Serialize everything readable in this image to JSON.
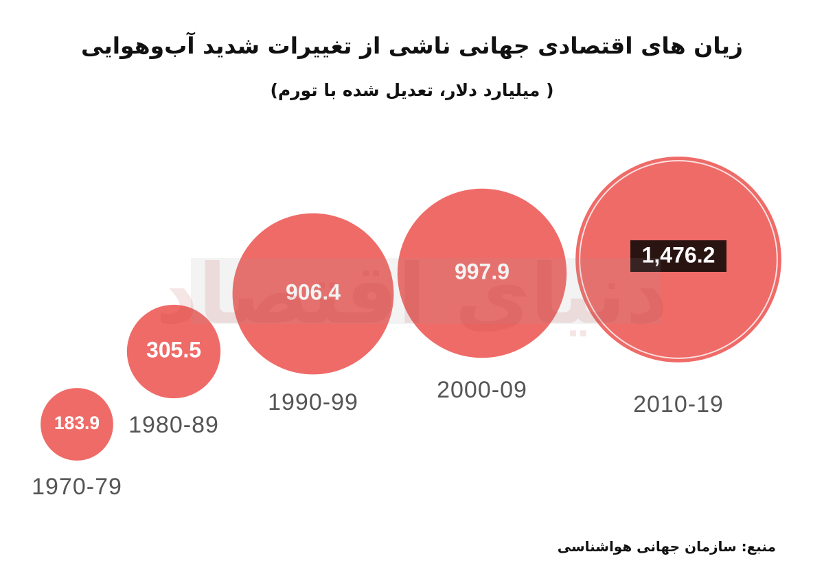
{
  "chart_data": {
    "type": "bubble",
    "title": "زیان های اقتصادی جهانی ناشی از تغییرات شدید آب‌وهوایی",
    "subtitle": "( میلیارد دلار، تعدیل شده با تورم)",
    "categories": [
      "1970-79",
      "1980-89",
      "1990-99",
      "2000-09",
      "2010-19"
    ],
    "values": [
      183.9,
      305.5,
      906.4,
      997.9,
      1476.2
    ],
    "value_labels": [
      "183.9",
      "305.5",
      "906.4",
      "997.9",
      "1,476.2"
    ],
    "color": "#ef6b68",
    "source": "منبع: سازمان جهانی هواشناسی",
    "watermark": "دنیای اقتصاد"
  }
}
